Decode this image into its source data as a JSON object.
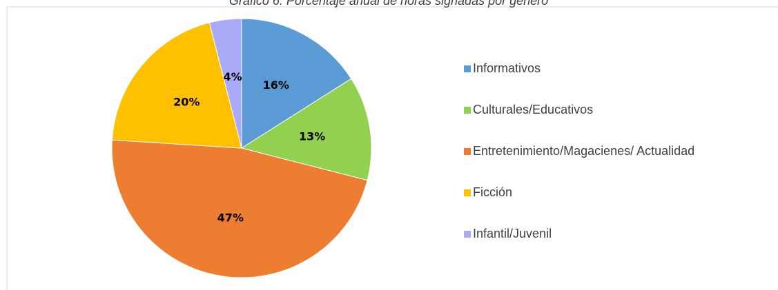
{
  "chart_data": {
    "type": "pie",
    "title": "Gráfico 6: Porcentaje anual de horas signadas por género",
    "categories": [
      "Informativos",
      "Culturales/Educativos",
      "Entretenimiento/Magacienes/ Actualidad",
      "Ficción",
      "Infantil/Juvenil"
    ],
    "values": [
      16,
      13,
      47,
      20,
      4
    ],
    "value_labels": [
      "16%",
      "13%",
      "47%",
      "20%",
      "4%"
    ],
    "colors": [
      "#5b9bd5",
      "#92d050",
      "#ed7d31",
      "#ffc000",
      "#aaaaf8"
    ],
    "legend": "right"
  }
}
